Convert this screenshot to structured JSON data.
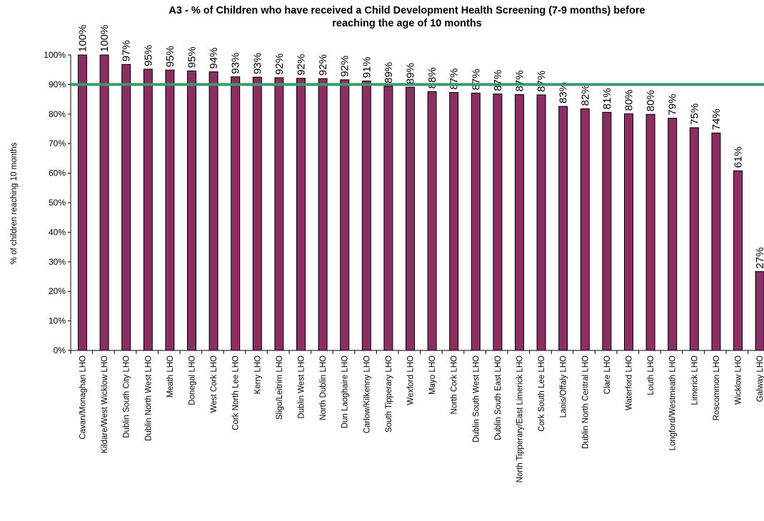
{
  "chart_data": {
    "type": "bar",
    "title_lines": [
      "A3 - % of Children who have received a Child Development Health Screening (7-9 months) before",
      "reaching the age of 10 months"
    ],
    "xlabel": "",
    "ylabel": "% of children reaching 10 months",
    "ylim": [
      0,
      100
    ],
    "yticks": [
      "0%",
      "10%",
      "20%",
      "30%",
      "40%",
      "50%",
      "60%",
      "70%",
      "80%",
      "90%",
      "100%"
    ],
    "categories": [
      "Cavan/Monaghan LHO",
      "Kildare/West Wicklow LHO",
      "Dublin South City LHO",
      "Dublin North West LHO",
      "Meath LHO",
      "Donegal LHO",
      "West Cork LHO",
      "Cork North Lee LHO",
      "Kerry LHO",
      "Sligo/Leitrim LHO",
      "Dublin West LHO",
      "North Dublin LHO",
      "Dun Laoghaire LHO",
      "Carlow/Kilkenny LHO",
      "South Tipperary LHO",
      "Wexford LHO",
      "Mayo  LHO",
      "North Cork LHO",
      "Dublin South West LHO",
      "Dublin South East LHO",
      "North Tipperary/East Limerick LHO",
      "Cork South Lee LHO",
      "Laois/Offaly LHO",
      "Dublin North Central LHO",
      "Clare LHO",
      "Waterford LHO",
      "Louth LHO",
      "Longford/Westmeath LHO",
      "Limerick LHO",
      "Roscommon LHO",
      "Wicklow LHO",
      "Galway LHO"
    ],
    "values": [
      100,
      100,
      96.8,
      95.2,
      94.9,
      94.6,
      94.3,
      92.6,
      92.5,
      92.3,
      92.1,
      92.0,
      91.6,
      91.2,
      89.4,
      89.1,
      87.6,
      87.3,
      87.1,
      86.8,
      86.6,
      86.5,
      82.6,
      81.8,
      80.6,
      80.1,
      79.9,
      78.6,
      75.4,
      73.6,
      60.8,
      26.7
    ],
    "data_labels": [
      "100%",
      "100%",
      "97%",
      "95%",
      "95%",
      "95%",
      "94%",
      "93%",
      "93%",
      "92%",
      "92%",
      "92%",
      "92%",
      "91%",
      "89%",
      "89%",
      "88%",
      "87%",
      "87%",
      "87%",
      "87%",
      "87%",
      "83%",
      "82%",
      "81%",
      "80%",
      "80%",
      "79%",
      "75%",
      "74%",
      "61%",
      "27%"
    ],
    "target_line": 90,
    "grid": false,
    "legend": "none",
    "colors": {
      "bar": "#8B2E62",
      "target": "#3A9A6A",
      "axis": "#000000"
    }
  }
}
